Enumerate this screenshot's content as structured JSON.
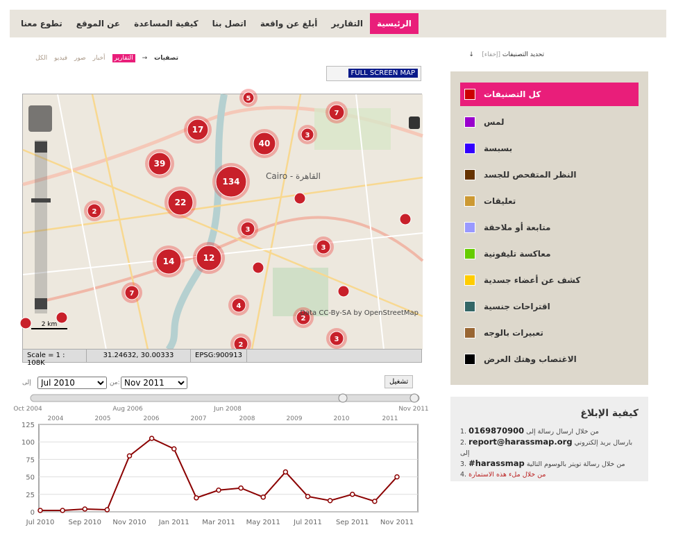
{
  "nav": [
    "الرئيسية",
    "التقارير",
    "أبلغ عن واقعة",
    "اتصل بنا",
    "كيفية المساعدة",
    "عن الموقع",
    "تطوع معنا"
  ],
  "filters": {
    "title": "تصفيات",
    "arrow": "→",
    "items": [
      "التقارير",
      "أخبار",
      "صور",
      "فيديو",
      "الكل"
    ]
  },
  "map": {
    "fullscreen": "FULL SCREEN MAP",
    "city": "Cairo - القاهرة",
    "attribution": "Data CC-By-SA by OpenStreetMap",
    "scalebar": "2 km",
    "clusters": [
      "5",
      "7",
      "17",
      "3",
      "40",
      "39",
      "134",
      "2",
      "22",
      "3",
      "3",
      "14",
      "12",
      "7",
      "4",
      "2",
      "3",
      "2"
    ],
    "scale": "Scale = 1 : 108K",
    "coords": "31.24632, 30.00333",
    "projection": "EPSG:900913"
  },
  "timeline": {
    "to_label": "إلى",
    "to": "Jul 2010",
    "from_label": "من:",
    "from": "Nov 2011",
    "play": "تشغيل",
    "years": [
      "Oct 2004",
      "2004",
      "2005",
      "Aug 2006",
      "2006",
      "2007",
      "Jun 2008",
      "2008",
      "2009",
      "2010",
      "2011",
      "Nov 2011"
    ]
  },
  "chart_data": {
    "type": "line",
    "categories": [
      "Jul 2010",
      null,
      "Sep 2010",
      null,
      "Nov 2010",
      null,
      "Jan 2011",
      null,
      "Mar 2011",
      null,
      "May 2011",
      null,
      "Jul 2011",
      null,
      "Sep 2011",
      null,
      "Nov 2011"
    ],
    "series": [
      {
        "name": "التقارير",
        "color": "#8b0000",
        "values": [
          2,
          2,
          4,
          3,
          80,
          105,
          90,
          20,
          31,
          34,
          21,
          57,
          22,
          16,
          25,
          15,
          50
        ]
      }
    ],
    "ylim": [
      0,
      125
    ],
    "yticks": [
      0,
      25,
      50,
      75,
      100,
      125
    ],
    "grid": true
  },
  "categories_panel": {
    "title": "تحديد التصنيفات",
    "toggle": "[إخفاء]",
    "arrow": "↓",
    "items": [
      {
        "label": "كل التصنيفات",
        "color": "#cc0000"
      },
      {
        "label": "لمس",
        "color": "#9900cc"
      },
      {
        "label": "بسبسة",
        "color": "#3300ff"
      },
      {
        "label": "النظر المتفحص للجسد",
        "color": "#663300"
      },
      {
        "label": "تعليقات",
        "color": "#cc9933"
      },
      {
        "label": "متابعة أو ملاحقة",
        "color": "#9999ff"
      },
      {
        "label": "معاكسة تليفونية",
        "color": "#66cc00"
      },
      {
        "label": "كشف عن أعضاء جسدية",
        "color": "#ffcc00"
      },
      {
        "label": "اقتراحات جنسية",
        "color": "#336666"
      },
      {
        "label": "تعبيرات بالوجه",
        "color": "#996633"
      },
      {
        "label": "الاغتصاب وهتك العرض",
        "color": "#000000"
      }
    ]
  },
  "how": {
    "title": "كيفية الإبلاغ",
    "items": [
      {
        "text": "من خلال ارسال رسالة إلى",
        "strong": "0169870900"
      },
      {
        "text": "بارسال بريد إلكتروني إلى",
        "strong": "report@harassmap.org"
      },
      {
        "text": "من خلال رسالة تويتر بالوسوم التالية",
        "strong": "#harassmap"
      },
      {
        "text": "من خلال ملء هذه الاستمارة",
        "strong": null
      }
    ]
  }
}
